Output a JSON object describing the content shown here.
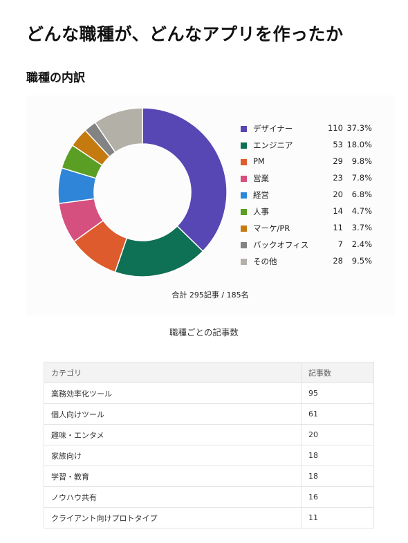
{
  "page": {
    "title": "どんな職種が、どんなアプリを作ったか",
    "section_title": "職種の内訳"
  },
  "chart_data": {
    "type": "pie",
    "donut": true,
    "legend_position": "right",
    "total_label": "合計 295記事 / 185名",
    "caption": "職種ごとの記事数",
    "slices": [
      {
        "name": "デザイナー",
        "value": 110,
        "percent": "37.3%",
        "color": "#5747b4"
      },
      {
        "name": "エンジニア",
        "value": 53,
        "percent": "18.0%",
        "color": "#0e7054"
      },
      {
        "name": "PM",
        "value": 29,
        "percent": "9.8%",
        "color": "#dd5b2c"
      },
      {
        "name": "営業",
        "value": 23,
        "percent": "7.8%",
        "color": "#d54f7f"
      },
      {
        "name": "経営",
        "value": 20,
        "percent": "6.8%",
        "color": "#2f86d8"
      },
      {
        "name": "人事",
        "value": 14,
        "percent": "4.7%",
        "color": "#5a9e24"
      },
      {
        "name": "マーケ/PR",
        "value": 11,
        "percent": "3.7%",
        "color": "#c57a10"
      },
      {
        "name": "バックオフィス",
        "value": 7,
        "percent": "2.4%",
        "color": "#838383"
      },
      {
        "name": "その他",
        "value": 28,
        "percent": "9.5%",
        "color": "#b3b0a8"
      }
    ]
  },
  "table": {
    "headers": [
      "カテゴリ",
      "記事数"
    ],
    "rows": [
      [
        "業務効率化ツール",
        "95"
      ],
      [
        "個人向けツール",
        "61"
      ],
      [
        "趣味・エンタメ",
        "20"
      ],
      [
        "家族向け",
        "18"
      ],
      [
        "学習・教育",
        "18"
      ],
      [
        "ノウハウ共有",
        "16"
      ],
      [
        "クライアント向けプロトタイプ",
        "11"
      ]
    ]
  }
}
